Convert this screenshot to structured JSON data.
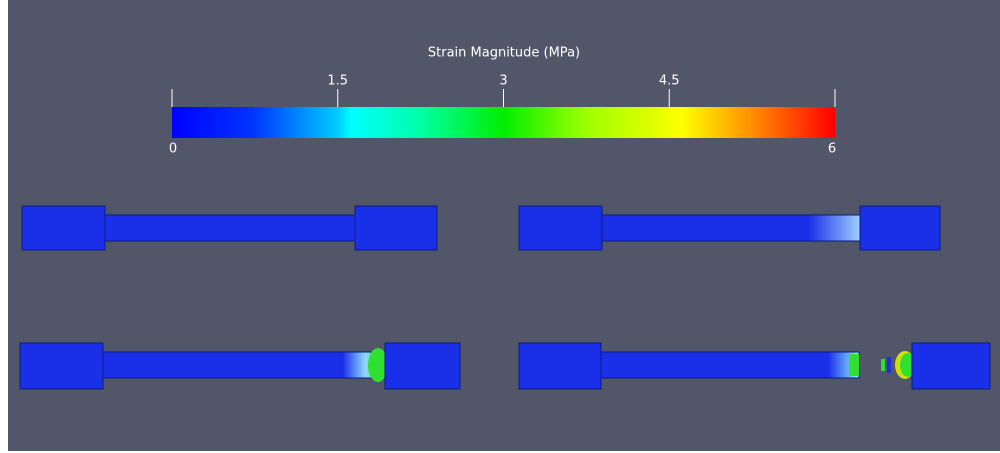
{
  "colorbar": {
    "title": "Strain Magnitude (MPa)",
    "range": [
      0,
      6
    ],
    "ticks": [
      0,
      1.5,
      3,
      4.5,
      6
    ]
  }
}
